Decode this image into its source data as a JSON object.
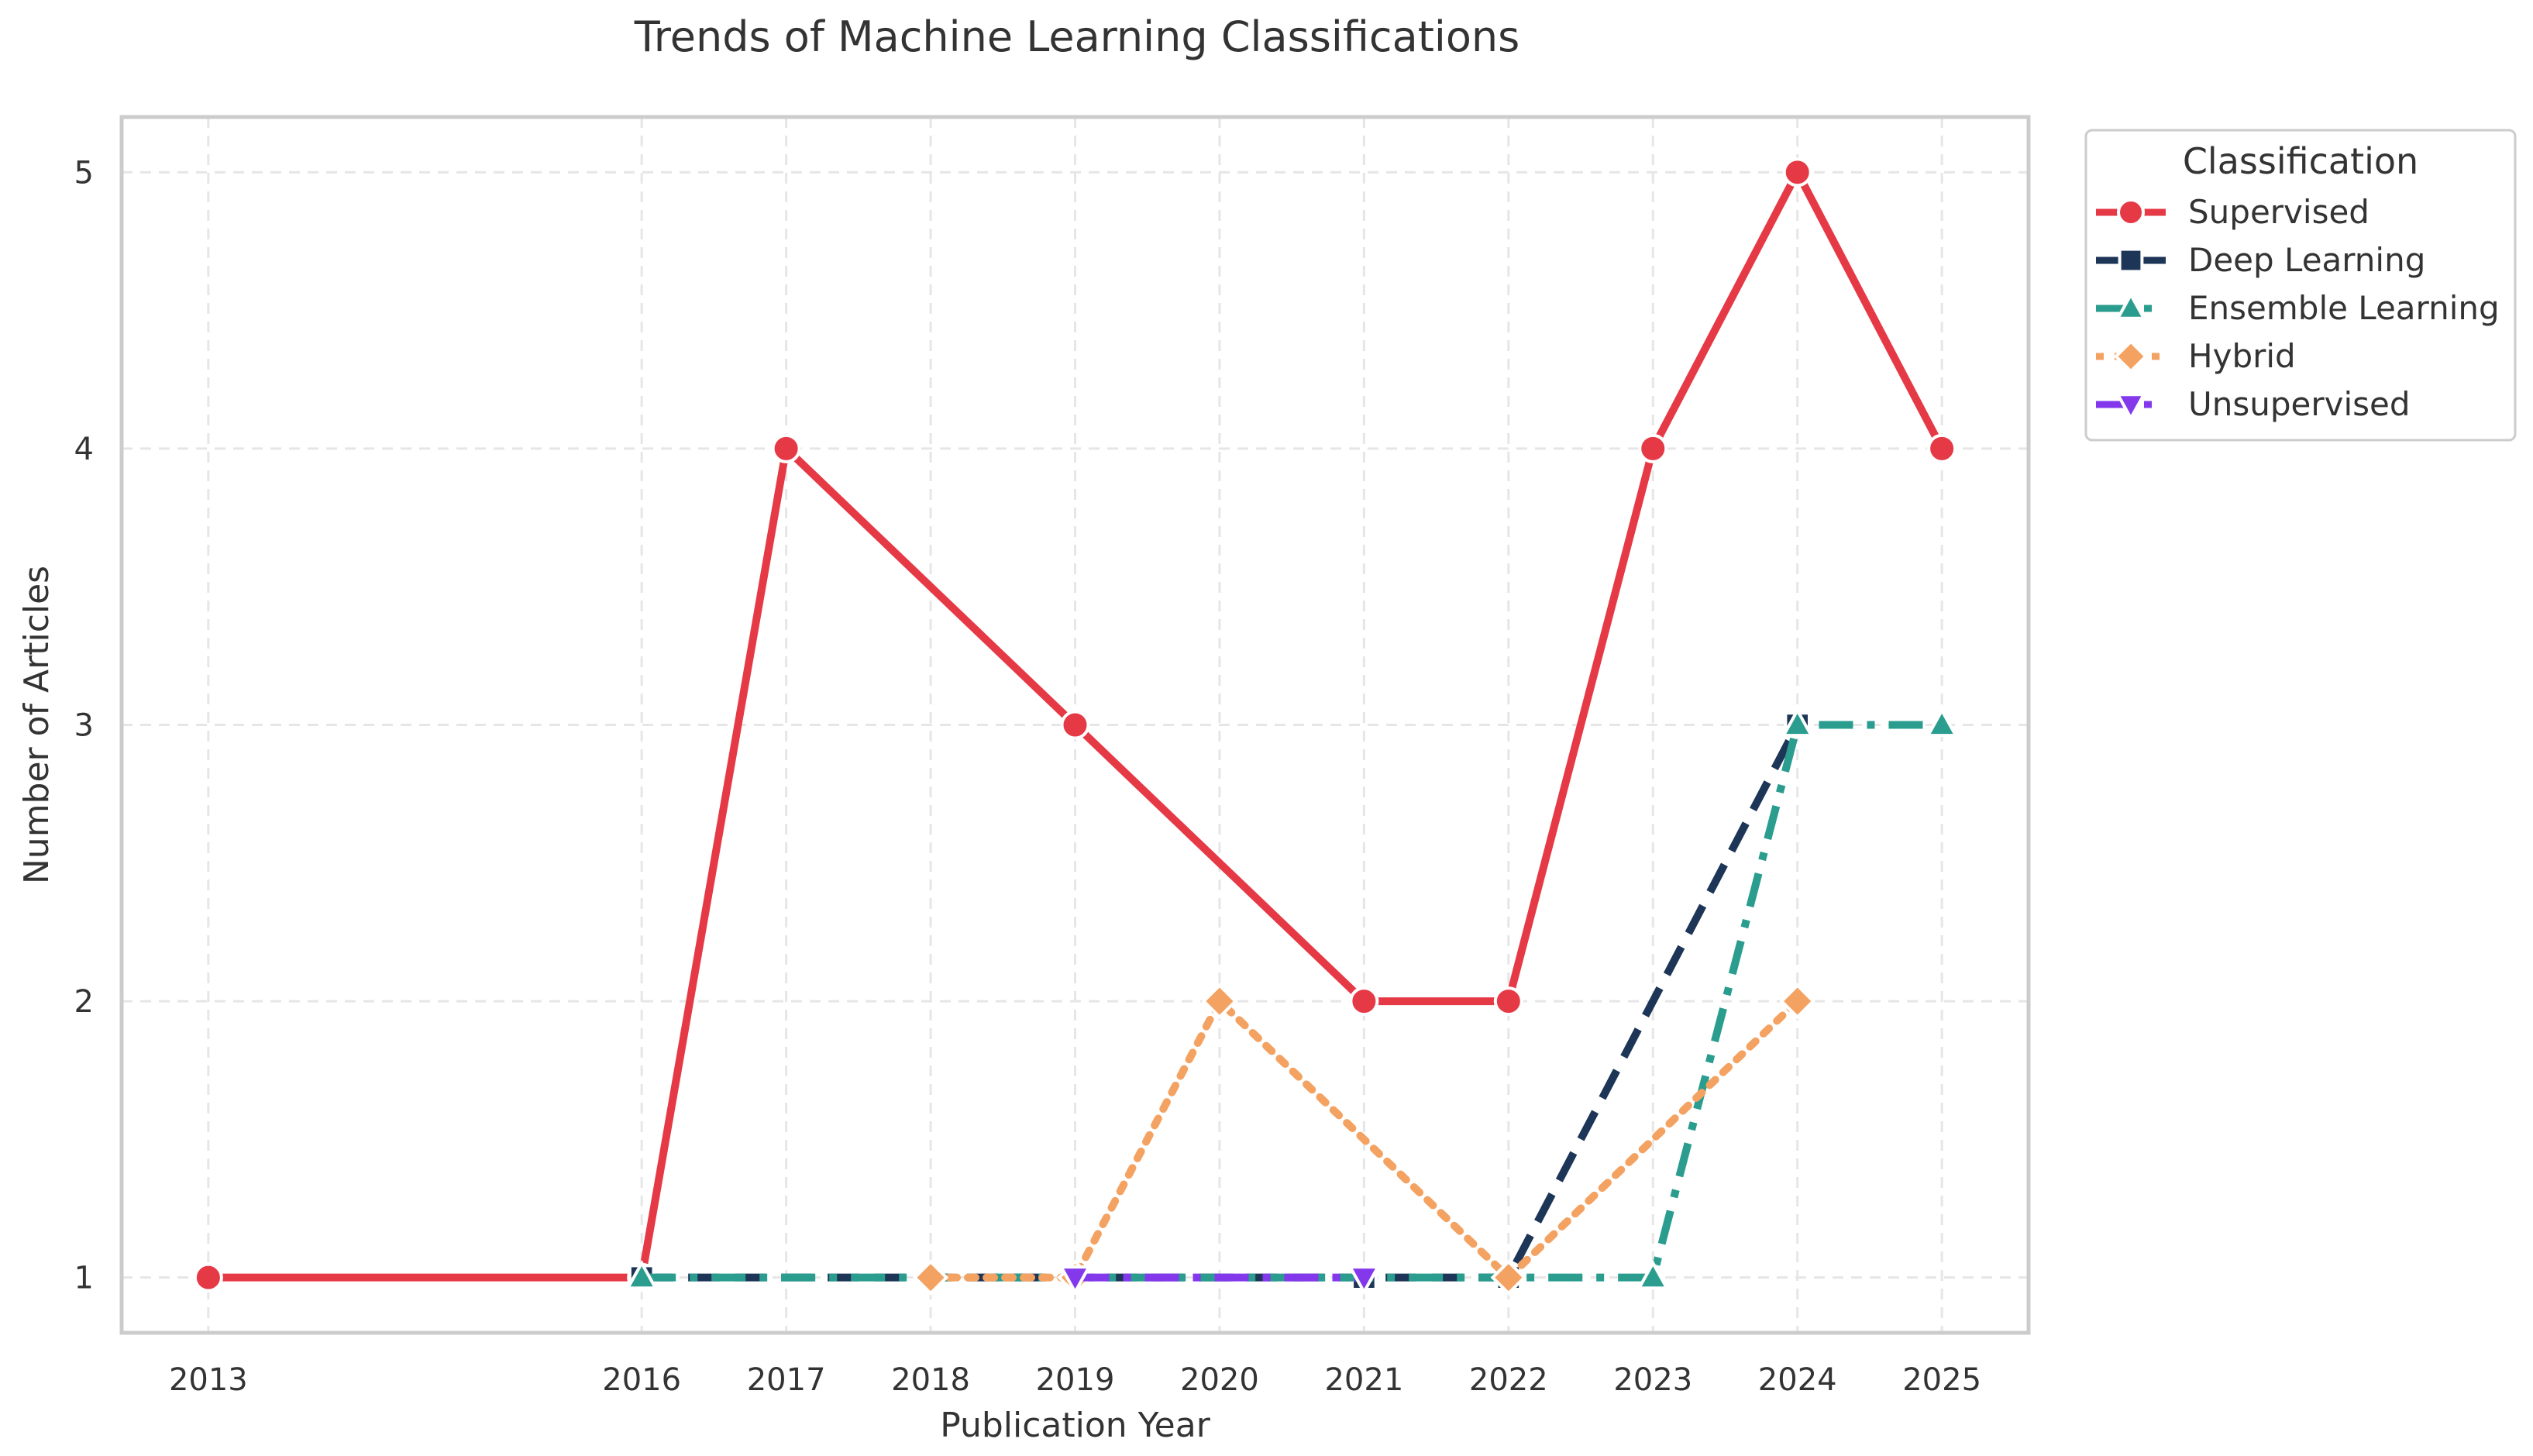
{
  "chart_data": {
    "type": "line",
    "title": "Trends of Machine Learning Classifications",
    "xlabel": "Publication Year",
    "ylabel": "Number of Articles",
    "x_ticks": [
      2013,
      2016,
      2017,
      2018,
      2019,
      2020,
      2021,
      2022,
      2023,
      2024,
      2025
    ],
    "y_ticks": [
      1,
      2,
      3,
      4,
      5
    ],
    "xlim": [
      2012.4,
      2025.6
    ],
    "ylim": [
      0.8,
      5.2
    ],
    "grid": true,
    "legend": {
      "title": "Classification",
      "placement": "top-right, outside plot"
    },
    "series": [
      {
        "name": "Supervised",
        "color": "#e63946",
        "marker": "circle",
        "line_style": "solid",
        "points": [
          [
            2013,
            1
          ],
          [
            2016,
            1
          ],
          [
            2017,
            4
          ],
          [
            2019,
            3
          ],
          [
            2021,
            2
          ],
          [
            2022,
            2
          ],
          [
            2023,
            4
          ],
          [
            2024,
            5
          ],
          [
            2025,
            4
          ]
        ]
      },
      {
        "name": "Deep Learning",
        "color": "#1d3557",
        "marker": "square",
        "line_style": "dashed",
        "points": [
          [
            2016,
            1
          ],
          [
            2021,
            1
          ],
          [
            2022,
            1
          ],
          [
            2024,
            3
          ]
        ]
      },
      {
        "name": "Ensemble Learning",
        "color": "#2a9d8f",
        "marker": "triangle-up",
        "line_style": "dashdot",
        "points": [
          [
            2016,
            1
          ],
          [
            2023,
            1
          ],
          [
            2024,
            3
          ],
          [
            2025,
            3
          ]
        ]
      },
      {
        "name": "Hybrid",
        "color": "#f4a261",
        "marker": "diamond",
        "line_style": "dotted",
        "points": [
          [
            2018,
            1
          ],
          [
            2019,
            1
          ],
          [
            2020,
            2
          ],
          [
            2022,
            1
          ],
          [
            2024,
            2
          ]
        ]
      },
      {
        "name": "Unsupervised",
        "color": "#8338ec",
        "marker": "triangle-down",
        "line_style": "dashdot",
        "points": [
          [
            2019,
            1
          ],
          [
            2021,
            1
          ]
        ]
      }
    ]
  }
}
